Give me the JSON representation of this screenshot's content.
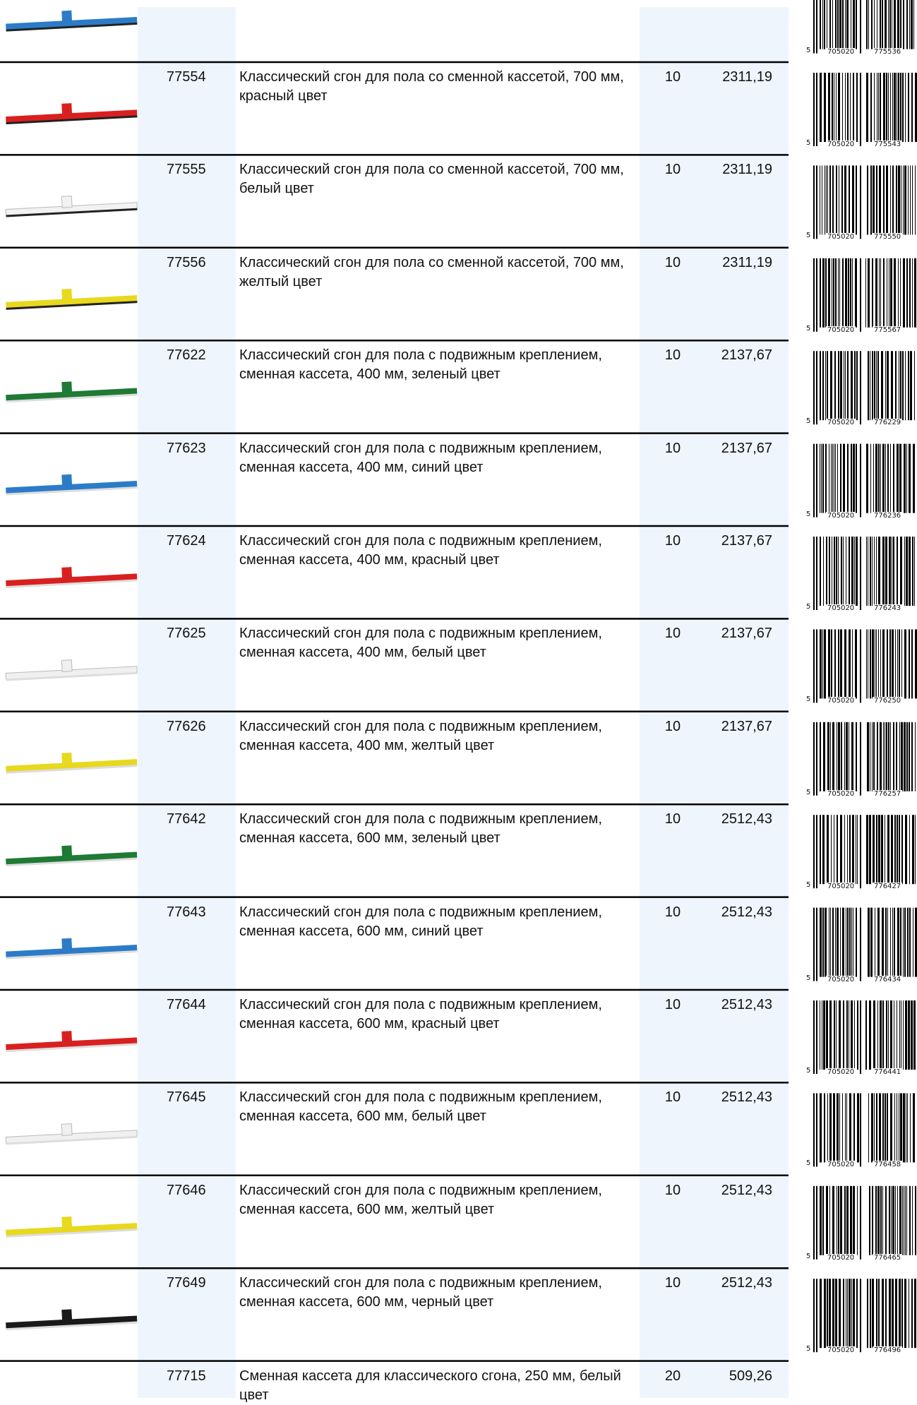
{
  "rows": [
    {
      "barcode": [
        "5",
        "705020",
        "775536"
      ]
    },
    {
      "code": "77554",
      "description": "Классический сгон для пола со сменной кассетой, 700 мм, красный цвет",
      "qty": "10",
      "price": "2311,19",
      "barcode": [
        "5",
        "705020",
        "775543"
      ]
    },
    {
      "code": "77555",
      "description": "Классический сгон для пола со сменной кассетой, 700 мм, белый цвет",
      "qty": "10",
      "price": "2311,19",
      "barcode": [
        "5",
        "705020",
        "775550"
      ]
    },
    {
      "code": "77556",
      "description": "Классический сгон для пола со сменной кассетой, 700 мм, желтый цвет",
      "qty": "10",
      "price": "2311,19",
      "barcode": [
        "5",
        "705020",
        "775567"
      ]
    },
    {
      "code": "77622",
      "description": "Классический сгон для пола с подвижным креплением, сменная кассета, 400 мм, зеленый цвет",
      "qty": "10",
      "price": "2137,67",
      "barcode": [
        "5",
        "705020",
        "776229"
      ]
    },
    {
      "code": "77623",
      "description": "Классический сгон для пола с подвижным креплением, сменная кассета, 400 мм, синий цвет",
      "qty": "10",
      "price": "2137,67",
      "barcode": [
        "5",
        "705020",
        "776236"
      ]
    },
    {
      "code": "77624",
      "description": "Классический сгон для пола с подвижным креплением, сменная кассета, 400 мм, красный цвет",
      "qty": "10",
      "price": "2137,67",
      "barcode": [
        "5",
        "705020",
        "776243"
      ]
    },
    {
      "code": "77625",
      "description": "Классический сгон для пола с подвижным креплением, сменная кассета, 400 мм, белый цвет",
      "qty": "10",
      "price": "2137,67",
      "barcode": [
        "5",
        "705020",
        "776250"
      ]
    },
    {
      "code": "77626",
      "description": "Классический сгон для пола с подвижным креплением, сменная кассета, 400 мм, желтый цвет",
      "qty": "10",
      "price": "2137,67",
      "barcode": [
        "5",
        "705020",
        "776257"
      ]
    },
    {
      "code": "77642",
      "description": "Классический сгон для пола с подвижным креплением, сменная кассета, 600 мм, зеленый цвет",
      "qty": "10",
      "price": "2512,43",
      "barcode": [
        "5",
        "705020",
        "776427"
      ]
    },
    {
      "code": "77643",
      "description": "Классический сгон для пола с подвижным креплением, сменная кассета, 600 мм, синий цвет",
      "qty": "10",
      "price": "2512,43",
      "barcode": [
        "5",
        "705020",
        "776434"
      ]
    },
    {
      "code": "77644",
      "description": "Классический сгон для пола с подвижным креплением, сменная кассета, 600 мм, красный цвет",
      "qty": "10",
      "price": "2512,43",
      "barcode": [
        "5",
        "705020",
        "776441"
      ]
    },
    {
      "code": "77645",
      "description": "Классический сгон для пола с подвижным креплением, сменная кассета, 600 мм, белый цвет",
      "qty": "10",
      "price": "2512,43",
      "barcode": [
        "5",
        "705020",
        "776458"
      ]
    },
    {
      "code": "77646",
      "description": "Классический сгон для пола с подвижным креплением, сменная кассета, 600 мм, желтый цвет",
      "qty": "10",
      "price": "2512,43",
      "barcode": [
        "5",
        "705020",
        "776465"
      ]
    },
    {
      "code": "77649",
      "description": "Классический сгон для пола с подвижным креплением, сменная кассета, 600 мм, черный цвет",
      "qty": "10",
      "price": "2512,43",
      "barcode": [
        "5",
        "705020",
        "776496"
      ]
    },
    {
      "code": "77715",
      "description": "Сменная кассета для классического сгона, 250 мм, белый цвет",
      "qty": "20",
      "price": "509,26"
    }
  ]
}
